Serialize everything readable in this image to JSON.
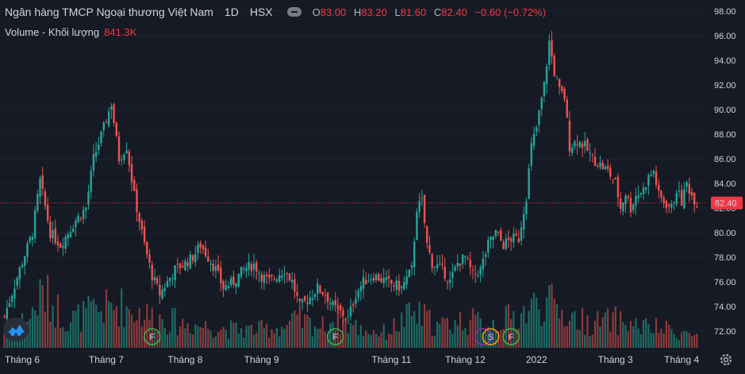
{
  "header": {
    "title": "Ngân hàng TMCP Ngoại thương Việt Nam",
    "interval": "1D",
    "exchange": "HSX",
    "o_label": "O",
    "o_value": "83.00",
    "h_label": "H",
    "h_value": "83.20",
    "l_label": "L",
    "l_value": "81.60",
    "c_label": "C",
    "c_value": "82.40",
    "change": "−0.60 (−0.72%)"
  },
  "volume": {
    "label": "Volume - Khối lượng",
    "value": "841.3K"
  },
  "colors": {
    "up": "#26a69a",
    "down": "#ef5350",
    "up_vol": "#1d6b64",
    "down_vol": "#8a3b3c",
    "price_line": "#f23645",
    "background": "#161a25"
  },
  "chart_data": {
    "type": "candlestick",
    "y_axis": {
      "range": [
        70.5,
        98.9
      ],
      "ticks": [
        "98.00",
        "96.00",
        "94.00",
        "92.00",
        "90.00",
        "88.00",
        "86.00",
        "84.00",
        "82.00",
        "80.00",
        "78.00",
        "76.00",
        "74.00",
        "72.00"
      ],
      "side": "right"
    },
    "last_price": "82.40",
    "x_labels": [
      "Tháng 6",
      "Tháng 7",
      "Tháng 8",
      "Tháng 9",
      "Tháng 11",
      "Tháng 12",
      "2022",
      "Tháng 3",
      "Tháng 4"
    ],
    "markers": [
      {
        "text": "F",
        "color": "#3bb34a"
      },
      {
        "text": "F",
        "color": "#3bb34a"
      },
      {
        "text": "",
        "color": "#9c27b0"
      },
      {
        "text": "S",
        "color": "#ff9800"
      },
      {
        "text": "F",
        "color": "#3bb34a"
      }
    ],
    "close_path": [
      [
        0,
        73.2
      ],
      [
        6,
        77
      ],
      [
        11,
        80
      ],
      [
        14,
        84.2
      ],
      [
        18,
        80
      ],
      [
        22,
        79
      ],
      [
        28,
        81
      ],
      [
        32,
        82
      ],
      [
        35,
        86
      ],
      [
        39,
        88.5
      ],
      [
        42,
        90.5
      ],
      [
        45,
        86
      ],
      [
        48,
        87
      ],
      [
        51,
        83
      ],
      [
        55,
        79
      ],
      [
        58,
        76.5
      ],
      [
        61,
        75
      ],
      [
        64,
        76
      ],
      [
        67,
        77
      ],
      [
        71,
        77.5
      ],
      [
        74,
        78
      ],
      [
        77,
        79
      ],
      [
        80,
        78
      ],
      [
        83,
        77
      ],
      [
        86,
        75.5
      ],
      [
        90,
        76
      ],
      [
        94,
        77
      ],
      [
        98,
        77.4
      ],
      [
        101,
        76.5
      ],
      [
        104,
        76
      ],
      [
        107,
        76.5
      ],
      [
        110,
        77
      ],
      [
        113,
        76
      ],
      [
        116,
        74
      ],
      [
        119,
        74.5
      ],
      [
        123,
        75.5
      ],
      [
        126,
        75
      ],
      [
        129,
        74
      ],
      [
        132,
        73.5
      ],
      [
        135,
        73
      ],
      [
        138,
        75
      ],
      [
        141,
        76
      ],
      [
        145,
        76.5
      ],
      [
        150,
        76
      ],
      [
        156,
        75.5
      ],
      [
        160,
        77
      ],
      [
        162,
        82
      ],
      [
        164,
        82.5
      ],
      [
        166,
        79
      ],
      [
        168,
        77.5
      ],
      [
        172,
        77
      ],
      [
        175,
        76
      ],
      [
        178,
        77.5
      ],
      [
        181,
        78
      ],
      [
        184,
        76.5
      ],
      [
        187,
        77
      ],
      [
        190,
        79
      ],
      [
        193,
        80
      ],
      [
        196,
        79
      ],
      [
        199,
        79.5
      ],
      [
        202,
        79.5
      ],
      [
        205,
        83
      ],
      [
        207,
        87
      ],
      [
        209,
        88.5
      ],
      [
        212,
        92
      ],
      [
        214,
        95.5
      ],
      [
        216,
        93
      ],
      [
        218,
        91.5
      ],
      [
        220,
        91
      ],
      [
        222,
        87
      ],
      [
        225,
        87.5
      ],
      [
        228,
        87
      ],
      [
        231,
        86
      ],
      [
        234,
        85.5
      ],
      [
        237,
        85
      ],
      [
        240,
        84
      ],
      [
        242,
        82
      ],
      [
        244,
        83.2
      ],
      [
        246,
        82
      ],
      [
        248,
        83
      ],
      [
        251,
        83.5
      ],
      [
        253,
        84.5
      ],
      [
        255,
        85
      ],
      [
        257,
        83
      ],
      [
        259,
        82.5
      ],
      [
        262,
        82
      ],
      [
        264,
        83.5
      ],
      [
        266,
        82.5
      ],
      [
        268,
        84
      ],
      [
        270,
        83
      ],
      [
        272,
        82.4
      ]
    ],
    "volume_profile": [
      [
        0,
        0.3
      ],
      [
        10,
        0.5
      ],
      [
        15,
        0.9
      ],
      [
        25,
        0.45
      ],
      [
        35,
        0.6
      ],
      [
        45,
        0.7
      ],
      [
        55,
        0.55
      ],
      [
        60,
        0.5
      ],
      [
        70,
        0.4
      ],
      [
        80,
        0.35
      ],
      [
        90,
        0.3
      ],
      [
        100,
        0.3
      ],
      [
        110,
        0.35
      ],
      [
        115,
        0.45
      ],
      [
        125,
        0.35
      ],
      [
        130,
        0.5
      ],
      [
        140,
        0.3
      ],
      [
        150,
        0.25
      ],
      [
        160,
        0.55
      ],
      [
        165,
        0.5
      ],
      [
        170,
        0.35
      ],
      [
        180,
        0.45
      ],
      [
        190,
        0.4
      ],
      [
        200,
        0.5
      ],
      [
        205,
        0.6
      ],
      [
        210,
        0.75
      ],
      [
        215,
        0.7
      ],
      [
        220,
        0.55
      ],
      [
        230,
        0.4
      ],
      [
        240,
        0.45
      ],
      [
        250,
        0.35
      ],
      [
        260,
        0.3
      ],
      [
        272,
        0.2
      ]
    ]
  }
}
